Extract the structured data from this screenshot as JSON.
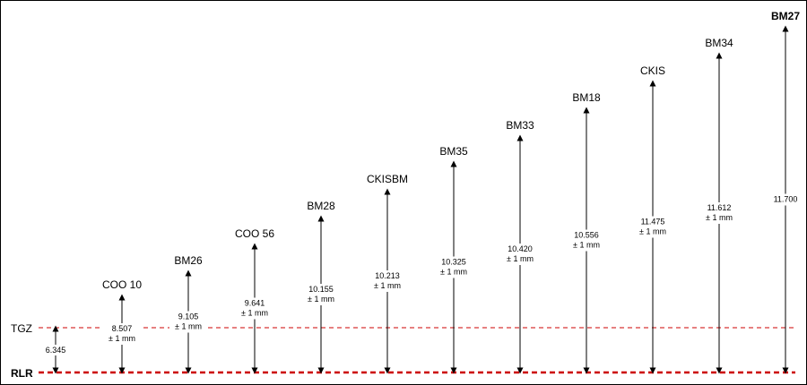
{
  "reference_lines": {
    "tgz": {
      "label": "TGZ",
      "value": "6.345",
      "color": "#cc0000"
    },
    "rlr": {
      "label": "RLR",
      "color": "#cc0000"
    }
  },
  "tolerance": "± 1 mm",
  "benchmarks": [
    {
      "name": "COO 10",
      "value": "8.507",
      "tolerance": true,
      "color": "#000000",
      "bold": false
    },
    {
      "name": "BM26",
      "value": "9.105",
      "tolerance": true,
      "color": "#000000",
      "bold": false
    },
    {
      "name": "COO 56",
      "value": "9.641",
      "tolerance": true,
      "color": "#000000",
      "bold": false
    },
    {
      "name": "BM28",
      "value": "10.155",
      "tolerance": true,
      "color": "#000000",
      "bold": false
    },
    {
      "name": "CKISBM",
      "value": "10.213",
      "tolerance": true,
      "color": "#000000",
      "bold": false
    },
    {
      "name": "BM35",
      "value": "10.325",
      "tolerance": true,
      "color": "#000000",
      "bold": false
    },
    {
      "name": "BM33",
      "value": "10.420",
      "tolerance": true,
      "color": "#000000",
      "bold": false
    },
    {
      "name": "BM18",
      "value": "10.556",
      "tolerance": true,
      "color": "#000000",
      "bold": false
    },
    {
      "name": "CKIS",
      "value": "11.475",
      "tolerance": true,
      "color": "#ee0000",
      "bold": false
    },
    {
      "name": "BM34",
      "value": "11.612",
      "tolerance": true,
      "color": "#000000",
      "bold": false
    },
    {
      "name": "BM27",
      "value": "11.700",
      "tolerance": false,
      "color": "#000000",
      "bold": true
    }
  ]
}
